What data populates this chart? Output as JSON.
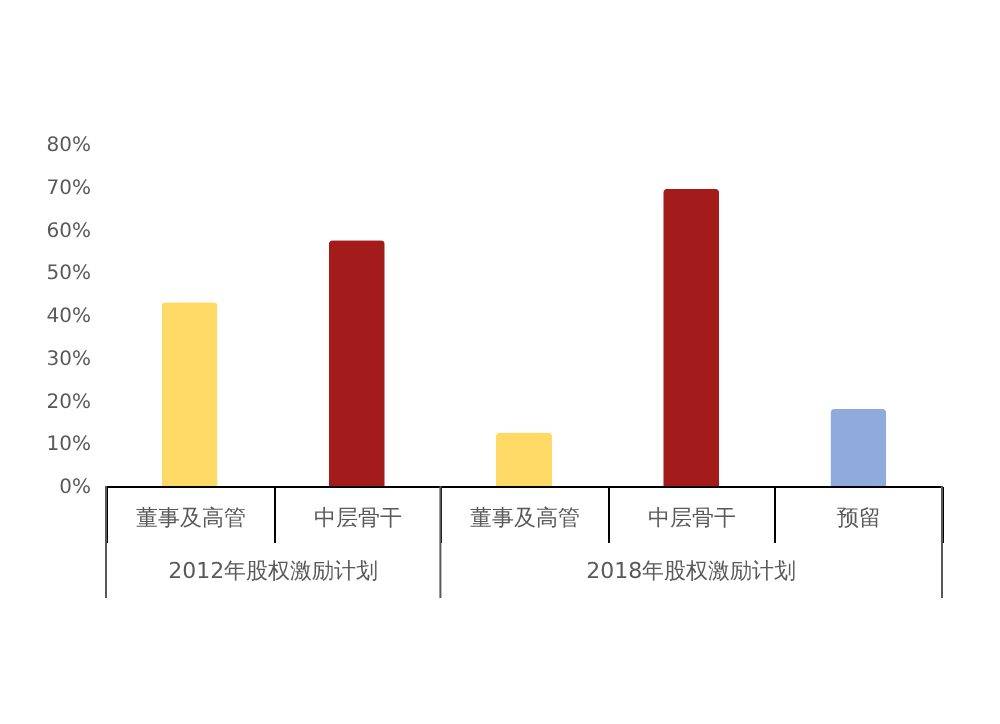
{
  "chart_data": {
    "type": "bar",
    "categories": [
      "董事及高管",
      "中层骨干",
      "董事及高管",
      "中层骨干",
      "预留"
    ],
    "values": [
      43,
      57.5,
      12.5,
      69.5,
      18
    ],
    "colors": [
      "#ffd966",
      "#a31b1b",
      "#ffd966",
      "#a31b1b",
      "#8faadc"
    ],
    "ylim": [
      0,
      80
    ],
    "yticks": [
      {
        "value": 0,
        "label": "0%"
      },
      {
        "value": 10,
        "label": "10%"
      },
      {
        "value": 20,
        "label": "20%"
      },
      {
        "value": 30,
        "label": "30%"
      },
      {
        "value": 40,
        "label": "40%"
      },
      {
        "value": 50,
        "label": "50%"
      },
      {
        "value": 60,
        "label": "60%"
      },
      {
        "value": 70,
        "label": "70%"
      },
      {
        "value": 80,
        "label": "80%"
      }
    ],
    "annotations": [
      "2012年股权激励计划",
      "2018年股权激励计划"
    ],
    "grid": false
  }
}
